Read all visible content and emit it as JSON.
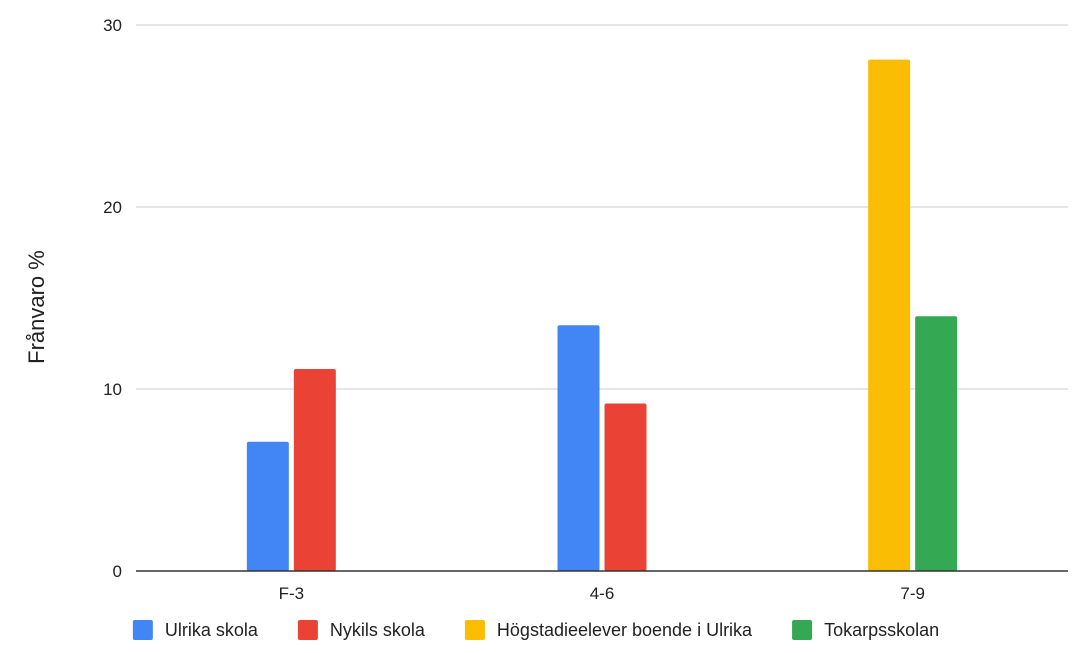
{
  "chart_data": {
    "type": "bar",
    "title": "",
    "xlabel": "",
    "ylabel": "Frånvaro %",
    "ylim": [
      0,
      30
    ],
    "yticks": [
      0,
      10,
      20,
      30
    ],
    "grid": true,
    "legend_position": "bottom",
    "categories": [
      "F-3",
      "4-6",
      "7-9"
    ],
    "series": [
      {
        "name": "Ulrika skola",
        "color": "#4285f4",
        "values": [
          7.1,
          13.5,
          null
        ]
      },
      {
        "name": "Nykils skola",
        "color": "#ea4335",
        "values": [
          11.1,
          9.2,
          null
        ]
      },
      {
        "name": "Högstadieelever boende i Ulrika",
        "color": "#fbbc04",
        "values": [
          null,
          null,
          28.1
        ]
      },
      {
        "name": "Tokarpsskolan",
        "color": "#34a853",
        "values": [
          null,
          null,
          14.0
        ]
      }
    ]
  }
}
